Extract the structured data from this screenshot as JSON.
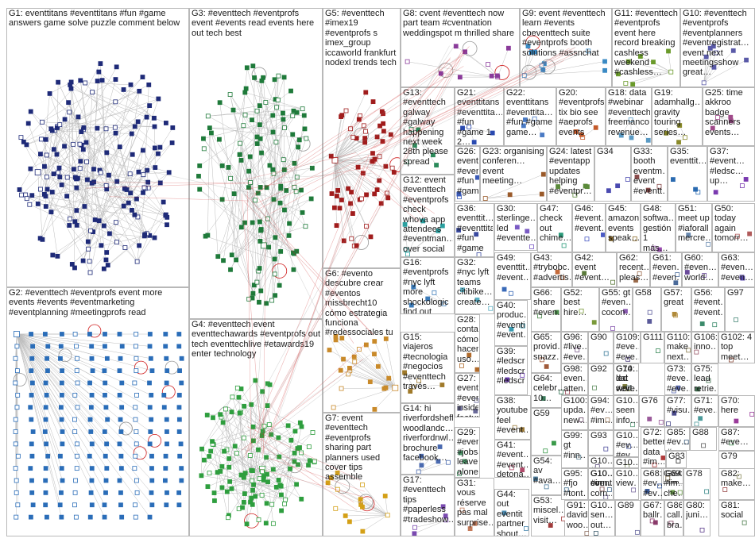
{
  "groups": [
    {
      "id": "G1",
      "label": "G1: eventtitans #eventtitans #fun #game answers game solve puzzle comment below",
      "color": "#1e2a78",
      "density": 180
    },
    {
      "id": "G2",
      "label": "G2: #eventtech #eventprofs event more events #events #eventmarketing #eventplanning #meetingprofs read",
      "color": "#2a6db8",
      "density": 190
    },
    {
      "id": "G3",
      "label": "G3: #eventtech #eventprofs event #events read events here out tech best",
      "color": "#1f7a3a",
      "density": 130
    },
    {
      "id": "G4",
      "label": "G4: #eventtech event eventtechawards #eventprofs out tech eventtechlive #etawards19 enter technology",
      "color": "#2e9e3e",
      "density": 120
    },
    {
      "id": "G5",
      "label": "G5: #eventtech #imex19 #eventprofs s imex_group iccaworld frankfurt nodexl trends tech",
      "color": "#a01c1c",
      "density": 60
    },
    {
      "id": "G6",
      "label": "G6: #evento descubre crear #eventos missbrecht10 cómo estrategia funciona #redessociales tu",
      "color": "#c98a2a",
      "density": 25
    },
    {
      "id": "G7",
      "label": "G7: event #eventtech #eventprofs sharing part planners used cover tips assemble",
      "color": "#d4a017",
      "density": 14
    },
    {
      "id": "G8",
      "label": "G8: cvent #eventtech now part team #cventnation weddingspot m thrilled share",
      "color": "#8a3a9a",
      "density": 10
    },
    {
      "id": "G9",
      "label": "G9: event #eventtech learn #events cbeventtech suite #eventprofs booth solutions #assnchat",
      "color": "#3a8ac4",
      "density": 10
    },
    {
      "id": "G10",
      "label": "G10: #eventtech #eventprofs #eventplanners #eventregistrat… event next meetingsshow great…",
      "color": "#5a5aa8",
      "density": 8
    },
    {
      "id": "G11",
      "label": "G11: #eventtech #eventprofs event here record breaking cashless weekend #cashless…",
      "color": "#6a9a2a",
      "density": 8
    },
    {
      "id": "G12",
      "label": "G12: event #eventtech #eventprofs check whova app attendees #eventman… over social",
      "color": "#2aa0a0",
      "density": 6
    },
    {
      "id": "G13",
      "label": "G13: #eventtech galway #galway happening next week 28th please spread",
      "color": "#2a8a5a",
      "density": 6
    },
    {
      "id": "G14",
      "label": "G14: hi riverfordsheff woodlandc… riverfordnwl… brochure facebook…",
      "color": "#4a6ab0",
      "density": 6
    },
    {
      "id": "G15",
      "label": "G15: viajeros #tecnologia #negocios #eventtech través…",
      "color": "#a07a2a",
      "density": 5
    },
    {
      "id": "G16",
      "label": "G16: #eventprofs #nyc lyft more shockologic find out scanning…",
      "color": "#3a7ab8",
      "density": 5
    },
    {
      "id": "G17",
      "label": "G17: #eventtech tips #paperless #tradeshow…",
      "color": "#7a4ab0",
      "density": 5
    },
    {
      "id": "G18",
      "label": "G18: data #webinar #eventtech freemanco revenue…",
      "color": "#5a9ac4",
      "density": 4
    },
    {
      "id": "G19",
      "label": "G19: adamhallg… gravity touring series…",
      "color": "#8a8a2a",
      "density": 4
    },
    {
      "id": "G20",
      "label": "G20: #eventprofs tix bio see #aeprofs events",
      "color": "#c45a2a",
      "density": 4
    },
    {
      "id": "G21",
      "label": "G21: eventtitans #eventtita… #fun #game 1 2…",
      "color": "#2a4ab0",
      "density": 4
    },
    {
      "id": "G22",
      "label": "G22: eventtitans #eventtita… #fun #game game…",
      "color": "#4a7ac4",
      "density": 4
    },
    {
      "id": "G23",
      "label": "G23: organising conferen… event meeting…",
      "color": "#9a5a2a",
      "density": 4
    },
    {
      "id": "G24",
      "label": "G24: latest #eventapp updates helping #eventpr…",
      "color": "#5a8a3a",
      "density": 4
    },
    {
      "id": "G25",
      "label": "G25: time akkroo badge scanners events…",
      "color": "#a04a8a",
      "density": 4
    },
    {
      "id": "G26",
      "label": "G26: eventtitans #eventtita… #fun #game",
      "color": "#3a5ab8",
      "density": 3
    },
    {
      "id": "G27",
      "label": "G27: event #eventt… insidern… feature…",
      "color": "#6a6a9a",
      "density": 3
    },
    {
      "id": "G28",
      "label": "G28: contam… cómo hacen uso…",
      "color": "#b06a2a",
      "density": 3
    },
    {
      "id": "G29",
      "label": "G29: #eventt… #jobsati… leave alone…",
      "color": "#4a9a6a",
      "density": 3
    },
    {
      "id": "G30",
      "label": "G30: sterlinge… led #eventte…",
      "color": "#7a5ac4",
      "density": 3
    },
    {
      "id": "G31",
      "label": "G31: vous réserve pas mal surprise…",
      "color": "#c47a5a",
      "density": 3
    },
    {
      "id": "G32",
      "label": "G32: #nyc lyft teams citibike… create…",
      "color": "#5ab0c4",
      "density": 3
    },
    {
      "id": "G33",
      "label": "G33: booth eventm… event #eventt…",
      "color": "#8a4a4a",
      "density": 3
    },
    {
      "id": "G34",
      "label": "G34",
      "color": "#4a4ab0",
      "density": 3
    },
    {
      "id": "G35",
      "label": "G35: eventtit…",
      "color": "#2a6ab0",
      "density": 3
    },
    {
      "id": "G36",
      "label": "G36: eventtit… #eventtita… #fun #game",
      "color": "#3a4aa0",
      "density": 3
    },
    {
      "id": "G37",
      "label": "G37: #event… #ledsc… up…",
      "color": "#7a3ab0",
      "density": 3
    },
    {
      "id": "G38",
      "label": "G38: youtube feel #event…",
      "color": "#9a7a3a",
      "density": 2
    },
    {
      "id": "G39",
      "label": "G39: #ledscr… #ledscr… #ledscr…",
      "color": "#6a3ab0",
      "density": 2
    },
    {
      "id": "G40",
      "label": "G40: produc… #eventi #event…",
      "color": "#3a9ab0",
      "density": 2
    },
    {
      "id": "G41",
      "label": "G41: #event… #event… detona…",
      "color": "#b04a6a",
      "density": 2
    },
    {
      "id": "G42",
      "label": "G42: event #event…",
      "color": "#5a7a3a",
      "density": 2
    },
    {
      "id": "G43",
      "label": "G43: #trybobc… #advertis…",
      "color": "#c46a3a",
      "density": 2
    },
    {
      "id": "G44",
      "label": "G44: out eventit partner shout…",
      "color": "#4a8ab0",
      "density": 2
    },
    {
      "id": "G45",
      "label": "G45: amazon events speak…",
      "color": "#8a6a2a",
      "density": 2
    },
    {
      "id": "G46",
      "label": "G46: #event… #event…",
      "color": "#4a5ac4",
      "density": 2
    },
    {
      "id": "G47",
      "label": "G47: check out chime…",
      "color": "#2a9a7a",
      "density": 2
    },
    {
      "id": "G48",
      "label": "G48: softwa… gestión 1 más…",
      "color": "#9a4ab0",
      "density": 2
    },
    {
      "id": "G49",
      "label": "G49: eventtit… #event…",
      "color": "#3a6ab8",
      "density": 2
    },
    {
      "id": "G50",
      "label": "G50: today again tomorr…",
      "color": "#b05a5a",
      "density": 2
    },
    {
      "id": "G51",
      "label": "G51: meet up #iaforall mercre…",
      "color": "#6a8ab0",
      "density": 2
    },
    {
      "id": "G52",
      "label": "G52: best hire…",
      "color": "#7a9a3a",
      "density": 2
    },
    {
      "id": "G53",
      "label": "G53: miscel… visit…",
      "color": "#a03a3a",
      "density": 2
    },
    {
      "id": "G54",
      "label": "G54: av #ava…",
      "color": "#4a7a9a",
      "density": 2
    },
    {
      "id": "G55",
      "label": "G55: gt #even… cocon…",
      "color": "#8a5ab0",
      "density": 2
    },
    {
      "id": "G56",
      "label": "G56: #event… #event…",
      "color": "#3a8a6a",
      "density": 2
    },
    {
      "id": "G57",
      "label": "G57: great",
      "color": "#b08a3a",
      "density": 2
    },
    {
      "id": "G58",
      "label": "G58",
      "color": "#5a5a9a",
      "density": 2
    },
    {
      "id": "G59",
      "label": "G59",
      "color": "#3a9a4a",
      "density": 2
    },
    {
      "id": "G60",
      "label": "G60: #even… world…",
      "color": "#6a4a9a",
      "density": 2
    },
    {
      "id": "G61",
      "label": "G61: #even… #even…",
      "color": "#4a6a9a",
      "density": 2
    },
    {
      "id": "G62",
      "label": "G62: recent… pleas…",
      "color": "#9a6a4a",
      "density": 2
    },
    {
      "id": "G63",
      "label": "G63: #even… #even…",
      "color": "#5a4ab0",
      "density": 2
    },
    {
      "id": "G64",
      "label": "G64: celebr… 10…",
      "color": "#3a7a5a",
      "density": 2
    },
    {
      "id": "G65",
      "label": "G65: provid… snazz…",
      "color": "#a05a3a",
      "density": 2
    },
    {
      "id": "G66",
      "label": "G66: share #even…",
      "color": "#4a8a4a",
      "density": 2
    },
    {
      "id": "G67",
      "label": "G67: ballr…",
      "color": "#8a3a6a",
      "density": 2
    },
    {
      "id": "G68",
      "label": "G68: #ev… #ev…",
      "color": "#3a5a9a",
      "density": 2
    },
    {
      "id": "G69",
      "label": "G69: #im… che…",
      "color": "#6a9a4a",
      "density": 2
    },
    {
      "id": "G70",
      "label": "G70: here",
      "color": "#9a3a9a",
      "density": 2
    },
    {
      "id": "G71",
      "label": "G71: #eve…",
      "color": "#4a9a9a",
      "density": 2
    },
    {
      "id": "G72",
      "label": "G72: better data #im…",
      "color": "#b03a3a",
      "density": 2
    },
    {
      "id": "G73",
      "label": "G73: #eve… #eve…",
      "color": "#5a6ab0",
      "density": 2
    },
    {
      "id": "G74",
      "label": "G74: dat #eve…",
      "color": "#7a7a3a",
      "density": 2
    },
    {
      "id": "G75",
      "label": "G75: lead retrie…",
      "color": "#3a6a4a",
      "density": 2
    },
    {
      "id": "G76",
      "label": "G76",
      "color": "#9a5a9a",
      "density": 2
    },
    {
      "id": "G77",
      "label": "G77: #visu…",
      "color": "#4a4a8a",
      "density": 2
    },
    {
      "id": "G78",
      "label": "G78",
      "color": "#3a8a8a",
      "density": 1
    },
    {
      "id": "G79",
      "label": "G79",
      "color": "#8a8a5a",
      "density": 1
    },
    {
      "id": "G80",
      "label": "G80: juni…",
      "color": "#5a3a8a",
      "density": 1
    },
    {
      "id": "G81",
      "label": "G81: social",
      "color": "#4a7a4a",
      "density": 1
    },
    {
      "id": "G82",
      "label": "G82: make…",
      "color": "#9a4a4a",
      "density": 1
    },
    {
      "id": "G83",
      "label": "G83",
      "color": "#2a2a2a",
      "density": 1
    },
    {
      "id": "G84",
      "label": "G84: #im…",
      "color": "#6a5a3a",
      "density": 1
    },
    {
      "id": "G85",
      "label": "G85: #ev… #ev…",
      "color": "#3a5a7a",
      "density": 1
    },
    {
      "id": "G86",
      "label": "G86: call… bra…",
      "color": "#7a3a5a",
      "density": 1
    },
    {
      "id": "G87",
      "label": "G87: #eve…",
      "color": "#4a9a5a",
      "density": 1
    },
    {
      "id": "G88",
      "label": "G88",
      "color": "#5a5a5a",
      "density": 1
    },
    {
      "id": "G89",
      "label": "G89",
      "color": "#6a6aa0",
      "density": 1
    },
    {
      "id": "G90",
      "label": "G90",
      "color": "#3a7a9a",
      "density": 1
    },
    {
      "id": "G91",
      "label": "G91: david woo…",
      "color": "#8a6a5a",
      "density": 1
    },
    {
      "id": "G92",
      "label": "G92",
      "color": "#5a8a5a",
      "density": 1
    },
    {
      "id": "G93",
      "label": "G93",
      "color": "#4a4a9a",
      "density": 1
    },
    {
      "id": "G94",
      "label": "G94: #ev… #im…",
      "color": "#9a7a5a",
      "density": 1
    },
    {
      "id": "G95",
      "label": "G95: #fjo #tont…",
      "color": "#3a6a8a",
      "density": 1
    },
    {
      "id": "G96",
      "label": "G96: #live… #eve…",
      "color": "#7a5a8a",
      "density": 1
    },
    {
      "id": "G97",
      "label": "G97",
      "color": "#4a8a7a",
      "density": 1
    },
    {
      "id": "G98",
      "label": "G98: even… atten…",
      "color": "#a04a5a",
      "density": 1
    },
    {
      "id": "G99",
      "label": "G99: gt #inn…",
      "color": "#5a7a8a",
      "density": 1
    },
    {
      "id": "G100",
      "label": "G100: upda… new…",
      "color": "#6a4a6a",
      "density": 1
    },
    {
      "id": "G101",
      "label": "G10… #ev… #ev…",
      "color": "#3a4a8a",
      "density": 1
    },
    {
      "id": "G102",
      "label": "G102: 4 top meet…",
      "color": "#8a4a3a",
      "density": 1
    },
    {
      "id": "G103",
      "label": "G10… led worl…",
      "color": "#4a6a6a",
      "density": 1
    },
    {
      "id": "G104",
      "label": "G10… view…",
      "color": "#7a6aa0",
      "density": 1
    },
    {
      "id": "G105",
      "label": "G10… seen info…",
      "color": "#5a9a7a",
      "density": 1
    },
    {
      "id": "G106",
      "label": "G106: inno…",
      "color": "#9a5a6a",
      "density": 1
    },
    {
      "id": "G107",
      "label": "G10… sen… out…",
      "color": "#3a5a6a",
      "density": 1
    },
    {
      "id": "G108",
      "label": "G10… #ev… #im…",
      "color": "#6a7a4a",
      "density": 1
    },
    {
      "id": "G109",
      "label": "G109: #eve… #eve…",
      "color": "#4a3a7a",
      "density": 1
    },
    {
      "id": "G110",
      "label": "G110: make next…",
      "color": "#8a7a4a",
      "density": 1
    },
    {
      "id": "G111",
      "label": "G111",
      "color": "#3a8a5a",
      "density": 1
    },
    {
      "id": "G112",
      "label": "G10… #eve… #eve…",
      "color": "#5a4a7a",
      "density": 1
    },
    {
      "id": "G113",
      "label": "G10… corn…",
      "color": "#7a4a4a",
      "density": 1
    },
    {
      "id": "G114",
      "label": "G10… event corn…",
      "color": "#4a6a8a",
      "density": 1
    },
    {
      "id": "G115",
      "label": "G10… #in…",
      "color": "#6a5a8a",
      "density": 1
    }
  ]
}
